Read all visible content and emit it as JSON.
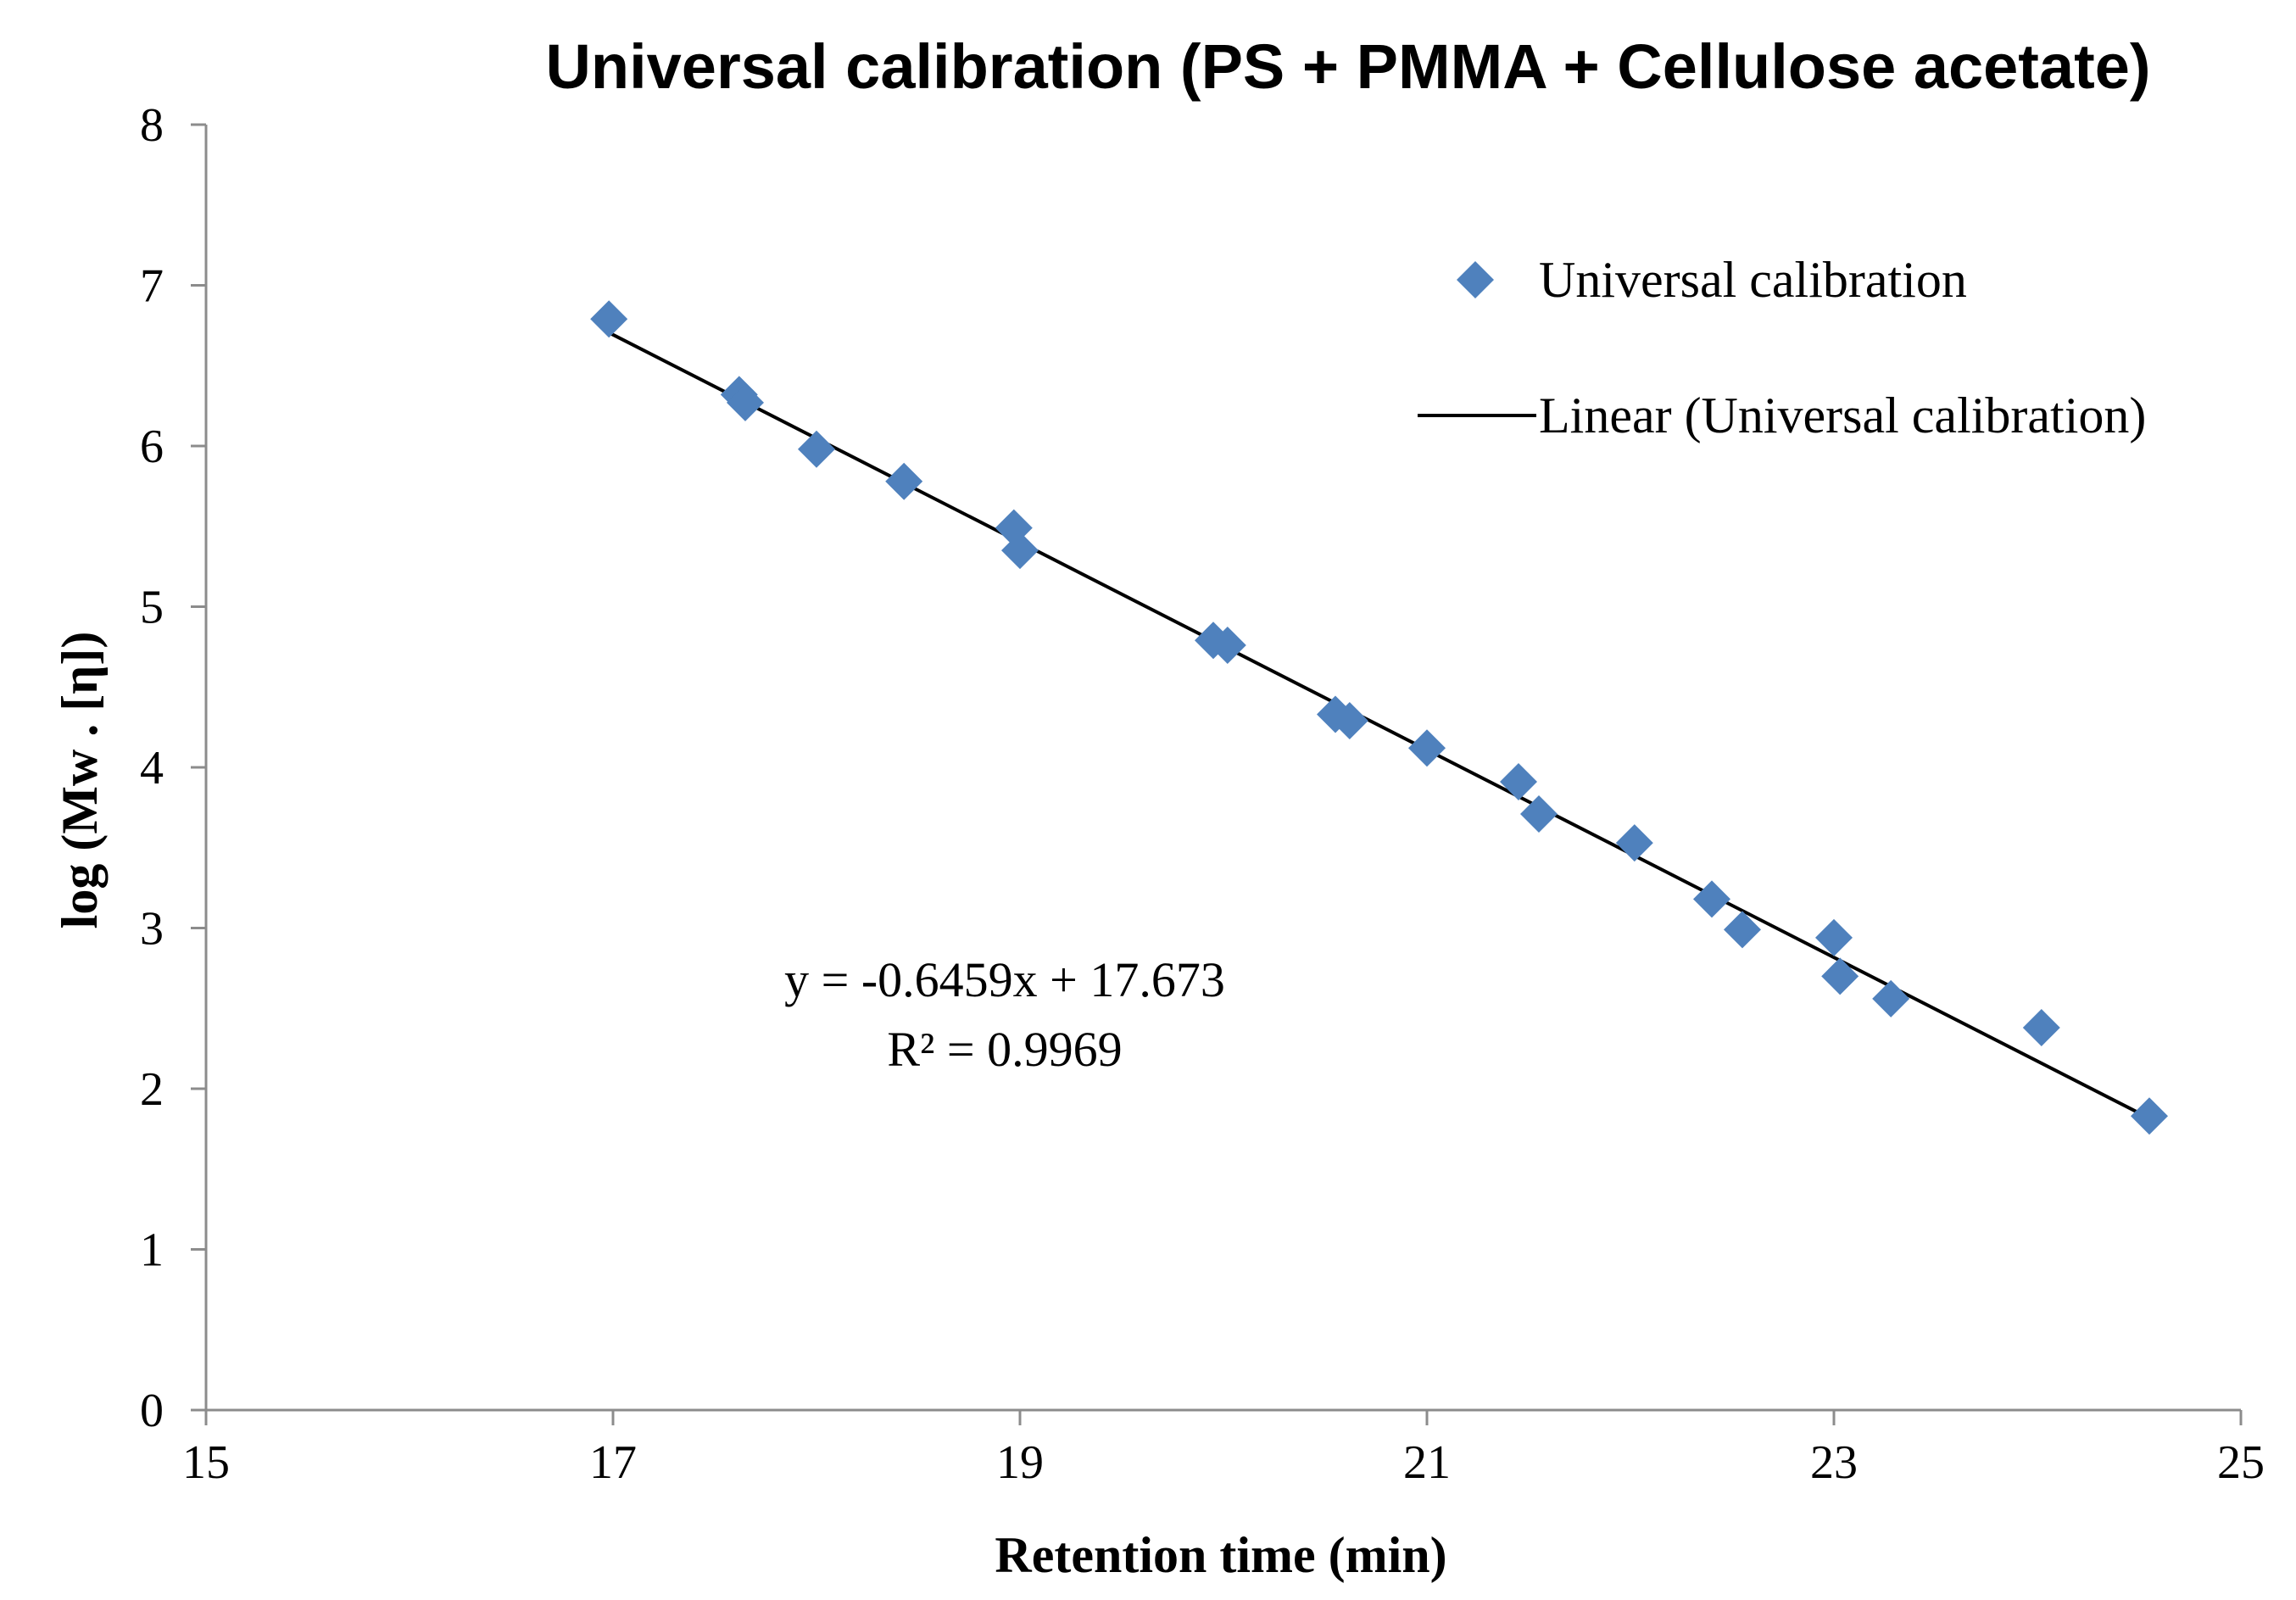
{
  "chart_data": {
    "type": "scatter",
    "title": "Universal calibration (PS + PMMA + Cellulose acetate)",
    "xlabel": "Retention time (min)",
    "ylabel": "log (Mw . [η])",
    "xlim": [
      15,
      25
    ],
    "ylim": [
      0,
      8
    ],
    "xticks": [
      15,
      17,
      19,
      21,
      23,
      25
    ],
    "yticks": [
      0,
      1,
      2,
      3,
      4,
      5,
      6,
      7,
      8
    ],
    "grid": false,
    "legend_position": "top-right",
    "series": [
      {
        "name": "Universal calibration",
        "kind": "scatter",
        "marker": "diamond",
        "color": "#4F81BD",
        "points": [
          {
            "x": 16.98,
            "y": 6.79
          },
          {
            "x": 17.62,
            "y": 6.32
          },
          {
            "x": 17.65,
            "y": 6.27
          },
          {
            "x": 18.0,
            "y": 5.98
          },
          {
            "x": 18.43,
            "y": 5.78
          },
          {
            "x": 18.97,
            "y": 5.49
          },
          {
            "x": 19.0,
            "y": 5.35
          },
          {
            "x": 19.95,
            "y": 4.79
          },
          {
            "x": 20.02,
            "y": 4.76
          },
          {
            "x": 20.55,
            "y": 4.33
          },
          {
            "x": 20.62,
            "y": 4.29
          },
          {
            "x": 21.0,
            "y": 4.12
          },
          {
            "x": 21.45,
            "y": 3.91
          },
          {
            "x": 21.55,
            "y": 3.71
          },
          {
            "x": 22.02,
            "y": 3.53
          },
          {
            "x": 22.4,
            "y": 3.18
          },
          {
            "x": 22.55,
            "y": 2.99
          },
          {
            "x": 23.0,
            "y": 2.94
          },
          {
            "x": 23.03,
            "y": 2.7
          },
          {
            "x": 23.28,
            "y": 2.56
          },
          {
            "x": 24.02,
            "y": 2.38
          },
          {
            "x": 24.55,
            "y": 1.83
          }
        ]
      },
      {
        "name": "Linear (Universal calibration)",
        "kind": "line",
        "color": "#000000",
        "slope": -0.6459,
        "intercept": 17.673,
        "x_range": [
          16.98,
          24.55
        ]
      }
    ],
    "annotations": {
      "equation": "y = -0.6459x + 17.673",
      "r_squared": "R² = 0.9969"
    }
  }
}
